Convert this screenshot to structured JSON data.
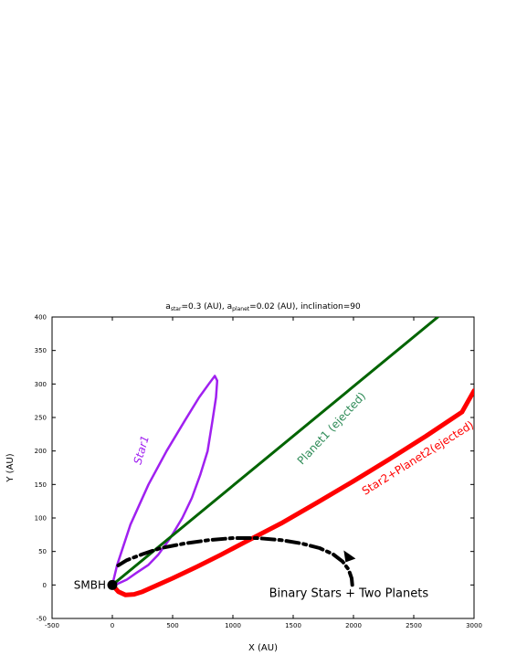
{
  "chart_data": {
    "type": "line",
    "title": {
      "a1": "a",
      "a1_sub": "star",
      "a1_val": "=0.3 (AU), ",
      "a2": "a",
      "a2_sub": "planet",
      "a2_val": "=0.02 (AU), inclination=90"
    },
    "xlabel": "X (AU)",
    "ylabel": "Y (AU)",
    "xlim": [
      -500,
      3000
    ],
    "ylim": [
      -50,
      400
    ],
    "xticks": [
      -500,
      0,
      500,
      1000,
      1500,
      2000,
      2500,
      3000
    ],
    "yticks": [
      -50,
      0,
      50,
      100,
      150,
      200,
      250,
      300,
      350,
      400
    ],
    "grid": false,
    "series": [
      {
        "name": "Star1",
        "color": "#a020f0",
        "x": [
          0,
          40,
          150,
          300,
          450,
          600,
          720,
          800,
          850,
          870,
          860,
          830,
          790,
          730,
          660,
          580,
          480,
          380,
          300,
          200,
          120,
          60,
          20,
          0
        ],
        "y": [
          0,
          30,
          90,
          150,
          200,
          245,
          280,
          300,
          312,
          305,
          280,
          245,
          200,
          165,
          130,
          100,
          70,
          45,
          30,
          18,
          8,
          3,
          0,
          0
        ]
      },
      {
        "name": "Planet1 (ejected)",
        "color": "#006400",
        "x": [
          0,
          2700
        ],
        "y": [
          0,
          400
        ]
      },
      {
        "name": "Star2+Planet2(ejected)",
        "color": "#ff0000",
        "x": [
          0,
          50,
          110,
          180,
          250,
          350,
          500,
          700,
          900,
          1100,
          1400,
          1700,
          2000,
          2300,
          2600,
          2900,
          3000
        ],
        "y": [
          0,
          -10,
          -15,
          -14,
          -10,
          -2,
          10,
          27,
          45,
          64,
          92,
          123,
          155,
          188,
          222,
          258,
          290
        ]
      },
      {
        "name": "trajectory-arrow",
        "color": "#000000",
        "x": [
          1990,
          1985,
          1960,
          1910,
          1830,
          1720,
          1570,
          1400,
          1200,
          1000,
          800,
          600,
          400,
          250,
          120,
          30
        ],
        "y": [
          0,
          10,
          23,
          35,
          46,
          55,
          62,
          67,
          70,
          70,
          67,
          62,
          55,
          46,
          37,
          27
        ]
      }
    ],
    "annotations": {
      "smbh": "SMBH",
      "star1": "Star1",
      "planet1": "Planet1 (ejected)",
      "star2": "Star2+Planet2(ejected)",
      "system": "Binary Stars + Two Planets"
    }
  }
}
